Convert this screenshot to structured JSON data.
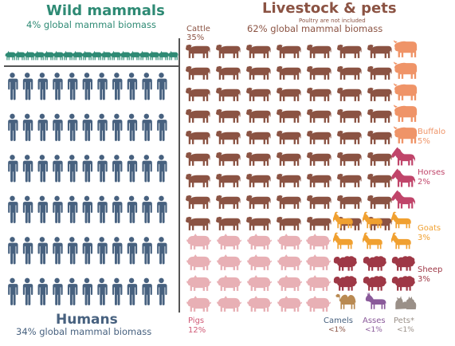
{
  "wild": {
    "title": "Wild mammals",
    "subtitle": "4% global mammal biomass"
  },
  "livestock": {
    "title": "Livestock & pets",
    "note": "Poultry are not included",
    "subtitle": "62% global mammal biomass"
  },
  "humans": {
    "title": "Humans",
    "subtitle": "34% global mammal biomass"
  },
  "labels": {
    "cattle": {
      "name": "Cattle",
      "pct": "35%"
    },
    "buffalo": {
      "name": "Buffalo",
      "pct": "5%"
    },
    "horses": {
      "name": "Horses",
      "pct": "2%"
    },
    "goats": {
      "name": "Goats",
      "pct": "3%"
    },
    "sheep": {
      "name": "Sheep",
      "pct": "3%"
    },
    "pigs": {
      "name": "Pigs",
      "pct": "12%"
    },
    "camels": {
      "name": "Camels",
      "pct": "<1%"
    },
    "asses": {
      "name": "Asses",
      "pct": "<1%"
    },
    "pets": {
      "name": "Pets*",
      "pct": "<1%"
    }
  },
  "colors": {
    "wild": "#2e8a74",
    "human": "#47617f",
    "cattle": "#8b5343",
    "buffalo": "#ef9468",
    "horse": "#c0456a",
    "goat": "#f0a030",
    "sheep": "#9e3846",
    "pig": "#e8b0b5",
    "camel": "#b98a52",
    "ass": "#8a5a9a",
    "pet": "#9a9088"
  },
  "icons": {
    "human": "person-icon",
    "cattle": "cow-icon",
    "buffalo": "buffalo-icon",
    "horse": "horse-icon",
    "goat": "goat-icon",
    "sheep": "sheep-icon",
    "pig": "pig-icon",
    "camel": "camel-icon",
    "ass": "donkey-icon",
    "pet": "pet-icon",
    "wild": "wild-animal-icon"
  }
}
